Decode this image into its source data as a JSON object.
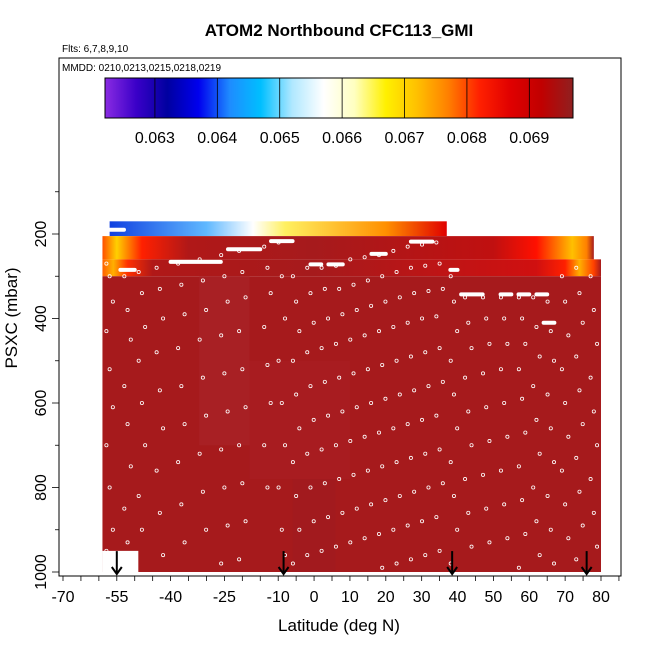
{
  "chart_data": {
    "type": "heatmap",
    "title": "ATOM2 Northbound CFC113_GMI",
    "subtitle_flights": "Flts: 6,7,8,9,10",
    "subtitle_dates": "MMDD: 0210,0213,0215,0218,0219",
    "xlabel": "Latitude (deg N)",
    "ylabel": "PSXC (mbar)",
    "xlim": [
      -70,
      85
    ],
    "ylim": [
      1000,
      50
    ],
    "y_reversed": true,
    "x_ticks": [
      -70,
      -55,
      -40,
      -25,
      -10,
      0,
      10,
      20,
      30,
      40,
      50,
      60,
      70,
      80
    ],
    "x_ticks_labeled": [
      -70,
      -55,
      -40,
      -25,
      -10,
      0,
      10,
      20,
      30,
      40,
      50,
      60,
      70,
      80
    ],
    "y_ticks": [
      200,
      400,
      600,
      800,
      1000
    ],
    "colorbar": {
      "placement": "top",
      "min": 0.0622,
      "max": 0.0697,
      "tick_values": [
        0.063,
        0.064,
        0.065,
        0.066,
        0.067,
        0.068,
        0.069
      ],
      "tick_labels": [
        "0.063",
        "0.064",
        "0.065",
        "0.066",
        "0.067",
        "0.068",
        "0.069"
      ],
      "stops": [
        "#8a2be2",
        "#3a00c8",
        "#0000a0",
        "#0000ee",
        "#1e8cff",
        "#00bfff",
        "#b0e8ff",
        "#ffffff",
        "#ffffc0",
        "#fff000",
        "#ffc000",
        "#ff8000",
        "#ff2000",
        "#e00000",
        "#c00000",
        "#902020"
      ]
    },
    "background_value": 0.0695,
    "background_color": "#a61a1c",
    "fields": [
      {
        "lat": [
          -57,
          37
        ],
        "p": [
          170,
          205
        ],
        "gradient": true,
        "grad_lat": [
          -57,
          -30,
          -17,
          -8,
          20,
          37
        ],
        "grad_colors": [
          "#1040e0",
          "#60b8ff",
          "#ffffff",
          "#fff060",
          "#ff9000",
          "#e00000"
        ]
      },
      {
        "lat": [
          -59,
          78
        ],
        "p": [
          205,
          260
        ],
        "gradient": true,
        "grad_lat": [
          -59,
          -55,
          -48,
          -35,
          0,
          50,
          62,
          72,
          76,
          78
        ],
        "grad_colors": [
          "#ff5000",
          "#ffd000",
          "#ff2000",
          "#b01818",
          "#a61a1c",
          "#c01010",
          "#ff1000",
          "#ffc000",
          "#ff8000",
          "#a61a1c"
        ]
      },
      {
        "lat": [
          -59,
          80
        ],
        "p": [
          260,
          300
        ],
        "gradient": true,
        "grad_lat": [
          -59,
          -56,
          -52,
          -45,
          0,
          62,
          70,
          74,
          78,
          80
        ],
        "grad_colors": [
          "#ff6000",
          "#ffb000",
          "#ff3000",
          "#b01818",
          "#a61a1c",
          "#d01010",
          "#ff2000",
          "#ffb000",
          "#ff4000",
          "#a61a1c"
        ]
      },
      {
        "lat": [
          -59,
          80
        ],
        "p": [
          300,
          1000
        ],
        "gradient": false,
        "color": "#a61a1c"
      },
      {
        "lat": [
          -32,
          -18
        ],
        "p": [
          300,
          700
        ],
        "gradient": false,
        "color": "#a82024"
      },
      {
        "lat": [
          -18,
          10
        ],
        "p": [
          500,
          780
        ],
        "gradient": false,
        "color": "#a81c20"
      },
      {
        "lat": [
          -6,
          6
        ],
        "p": [
          780,
          1000
        ],
        "gradient": false,
        "color": "#a21a1e"
      }
    ],
    "white_gap": {
      "lat": [
        -59,
        -49
      ],
      "p": [
        950,
        1000
      ]
    },
    "flight_segments": [
      {
        "lat": [
          -57,
          -53
        ],
        "p": 190
      },
      {
        "lat": [
          -54,
          -50
        ],
        "p": 285
      },
      {
        "lat": [
          -40,
          -26
        ],
        "p": 266
      },
      {
        "lat": [
          -24,
          -15
        ],
        "p": 236
      },
      {
        "lat": [
          -12,
          -6
        ],
        "p": 217
      },
      {
        "lat": [
          -1,
          2
        ],
        "p": 272
      },
      {
        "lat": [
          4,
          8
        ],
        "p": 272
      },
      {
        "lat": [
          16,
          20
        ],
        "p": 247
      },
      {
        "lat": [
          27,
          33
        ],
        "p": 218
      },
      {
        "lat": [
          38,
          40
        ],
        "p": 285
      },
      {
        "lat": [
          41,
          47
        ],
        "p": 343
      },
      {
        "lat": [
          52,
          55
        ],
        "p": 343
      },
      {
        "lat": [
          57,
          60
        ],
        "p": 343
      },
      {
        "lat": [
          62,
          65
        ],
        "p": 343
      },
      {
        "lat": [
          64,
          67
        ],
        "p": 410
      }
    ],
    "profiles": [
      {
        "lat": -57,
        "p": [
          270,
          300,
          360,
          430,
          520,
          610,
          700,
          800,
          900,
          950
        ]
      },
      {
        "lat": -52,
        "p": [
          300,
          380,
          450,
          560,
          650,
          750,
          850,
          930
        ]
      },
      {
        "lat": -48,
        "p": [
          290,
          340,
          420,
          500,
          600,
          700,
          820,
          900
        ]
      },
      {
        "lat": -43,
        "p": [
          280,
          330,
          400,
          480,
          570,
          660,
          760,
          860,
          960
        ]
      },
      {
        "lat": -37,
        "p": [
          270,
          320,
          390,
          470,
          560,
          650,
          740,
          840,
          930
        ]
      },
      {
        "lat": -31,
        "p": [
          260,
          310,
          380,
          450,
          540,
          630,
          720,
          810,
          900
        ]
      },
      {
        "lat": -25,
        "p": [
          250,
          300,
          360,
          440,
          530,
          620,
          710,
          800,
          890,
          980
        ]
      },
      {
        "lat": -20,
        "p": [
          240,
          290,
          350,
          430,
          520,
          610,
          700,
          790,
          880,
          970
        ]
      },
      {
        "lat": -13,
        "p": [
          230,
          280,
          340,
          420,
          510,
          600,
          700,
          800
        ]
      },
      {
        "lat": -9,
        "p": [
          220,
          300,
          400,
          500,
          600,
          700,
          800,
          900,
          960
        ]
      },
      {
        "lat": -5,
        "p": [
          300,
          360,
          430,
          500,
          580,
          660,
          740,
          820,
          900,
          980
        ]
      },
      {
        "lat": -1,
        "p": [
          280,
          340,
          410,
          480,
          560,
          640,
          720,
          800,
          880,
          960
        ]
      },
      {
        "lat": 3,
        "p": [
          280,
          330,
          400,
          470,
          550,
          630,
          710,
          790,
          870,
          950
        ]
      },
      {
        "lat": 7,
        "p": [
          275,
          330,
          390,
          460,
          540,
          620,
          700,
          780,
          860,
          940
        ]
      },
      {
        "lat": 11,
        "p": [
          260,
          320,
          380,
          450,
          530,
          610,
          690,
          770,
          850,
          930
        ]
      },
      {
        "lat": 15,
        "p": [
          255,
          310,
          370,
          440,
          520,
          600,
          680,
          760,
          840,
          920
        ]
      },
      {
        "lat": 19,
        "p": [
          250,
          300,
          360,
          430,
          510,
          590,
          670,
          750,
          830,
          910,
          990
        ]
      },
      {
        "lat": 23,
        "p": [
          240,
          290,
          350,
          420,
          500,
          580,
          660,
          740,
          820,
          900,
          980
        ]
      },
      {
        "lat": 27,
        "p": [
          230,
          280,
          340,
          410,
          490,
          570,
          650,
          730,
          810,
          890,
          970
        ]
      },
      {
        "lat": 31,
        "p": [
          225,
          275,
          335,
          400,
          480,
          560,
          640,
          720,
          800,
          880,
          960
        ]
      },
      {
        "lat": 35,
        "p": [
          220,
          270,
          330,
          395,
          470,
          550,
          630,
          710,
          790,
          870,
          950
        ]
      },
      {
        "lat": 39,
        "p": [
          300,
          360,
          430,
          500,
          580,
          660,
          740,
          820,
          900,
          980
        ]
      },
      {
        "lat": 43,
        "p": [
          350,
          410,
          470,
          540,
          620,
          700,
          780,
          860,
          940
        ]
      },
      {
        "lat": 48,
        "p": [
          350,
          400,
          460,
          530,
          610,
          690,
          770,
          850,
          930
        ]
      },
      {
        "lat": 53,
        "p": [
          350,
          400,
          460,
          520,
          600,
          680,
          760,
          840,
          920
        ]
      },
      {
        "lat": 58,
        "p": [
          350,
          400,
          460,
          520,
          590,
          670,
          750,
          830,
          910,
          990
        ]
      },
      {
        "lat": 62,
        "p": [
          350,
          420,
          490,
          560,
          640,
          720,
          800,
          880,
          960
        ]
      },
      {
        "lat": 66,
        "p": [
          360,
          430,
          500,
          580,
          660,
          740,
          820,
          900,
          980
        ]
      },
      {
        "lat": 70,
        "p": [
          300,
          360,
          440,
          520,
          600,
          680,
          760,
          840,
          920
        ]
      },
      {
        "lat": 74,
        "p": [
          280,
          340,
          410,
          490,
          570,
          650,
          730,
          810,
          890,
          970
        ]
      },
      {
        "lat": 78,
        "p": [
          300,
          380,
          460,
          540,
          620,
          700,
          780,
          860,
          940
        ]
      }
    ],
    "arrows": [
      {
        "lat": -55,
        "p_from": 960,
        "p_to": 1000
      },
      {
        "lat": -8.5,
        "p_from": 960,
        "p_to": 1000
      },
      {
        "lat": 38.5,
        "p_from": 960,
        "p_to": 1000
      },
      {
        "lat": 76,
        "p_from": 960,
        "p_to": 1000
      }
    ]
  }
}
